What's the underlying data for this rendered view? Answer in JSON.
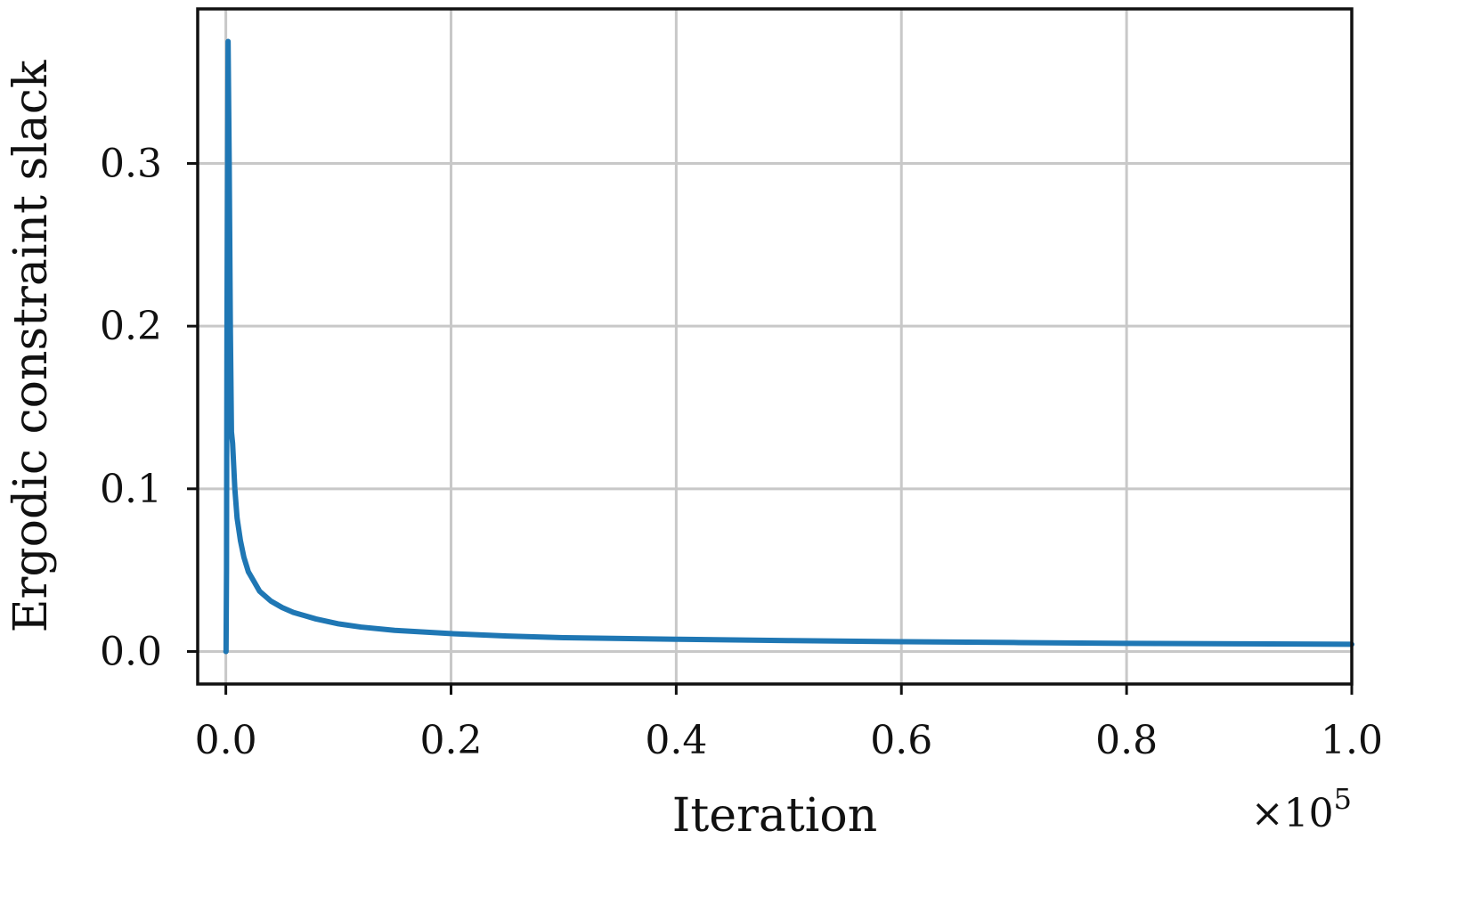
{
  "chart_data": {
    "type": "line",
    "title": "",
    "xlabel": "Iteration",
    "ylabel": "Ergodic constraint slack",
    "x_offset_label": "×10",
    "x_offset_exponent": "5",
    "xlim": [
      -0.025,
      1.0
    ],
    "ylim": [
      -0.02,
      0.395
    ],
    "xticks": [
      0.0,
      0.2,
      0.4,
      0.6,
      0.8,
      1.0
    ],
    "xtick_labels": [
      "0.0",
      "0.2",
      "0.4",
      "0.6",
      "0.8",
      "1.0"
    ],
    "yticks": [
      0.0,
      0.1,
      0.2,
      0.3
    ],
    "ytick_labels": [
      "0.0",
      "0.1",
      "0.2",
      "0.3"
    ],
    "grid": true,
    "legend": "none",
    "series": [
      {
        "color": "#1f77b4",
        "x": [
          0.0,
          0.0002,
          0.0006,
          0.001,
          0.002,
          0.003,
          0.004,
          0.005,
          0.006,
          0.008,
          0.01,
          0.013,
          0.016,
          0.02,
          0.025,
          0.03,
          0.04,
          0.05,
          0.06,
          0.07,
          0.08,
          0.1,
          0.12,
          0.15,
          0.2,
          0.25,
          0.3,
          0.4,
          0.5,
          0.6,
          0.7,
          0.8,
          0.9,
          1.0
        ],
        "y": [
          0.0,
          0.0,
          0.05,
          0.2,
          0.375,
          0.3,
          0.2,
          0.135,
          0.128,
          0.1,
          0.082,
          0.068,
          0.058,
          0.049,
          0.043,
          0.037,
          0.031,
          0.027,
          0.024,
          0.022,
          0.02,
          0.017,
          0.015,
          0.013,
          0.011,
          0.0095,
          0.0085,
          0.0075,
          0.0067,
          0.006,
          0.0055,
          0.005,
          0.0047,
          0.0044
        ]
      }
    ]
  }
}
